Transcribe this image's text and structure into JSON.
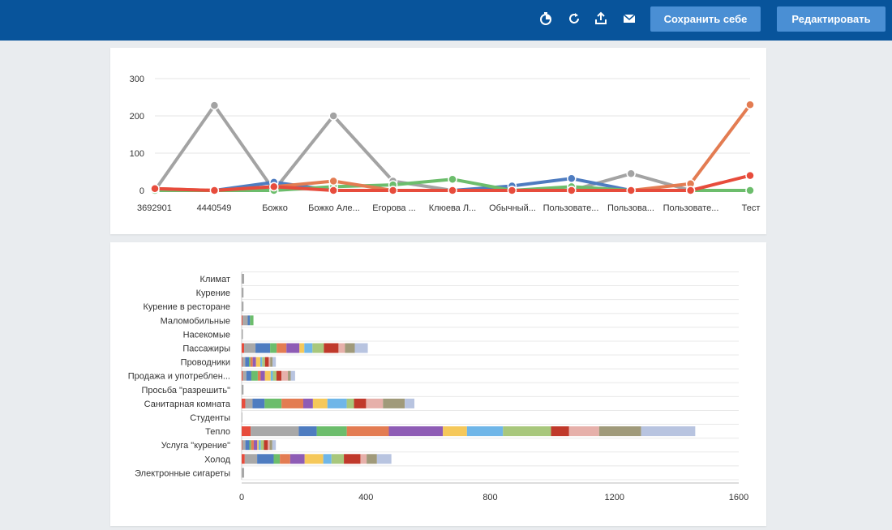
{
  "toolbar": {
    "icons": [
      "timer-icon",
      "refresh-icon",
      "export-icon",
      "mail-icon"
    ],
    "save_label": "Сохранить себе",
    "edit_label": "Редактировать"
  },
  "chart_data": [
    {
      "type": "line",
      "categories": [
        "3692901",
        "4440549",
        "Божко",
        "Божко Але...",
        "Егорова ...",
        "Клюева Л...",
        "Обычный...",
        "Пользовате...",
        "Пользова...",
        "Пользовате...",
        "Тест"
      ],
      "ylim": [
        0,
        300
      ],
      "yticks": [
        0,
        100,
        200,
        300
      ],
      "grid": true,
      "series": [
        {
          "color": "#a3a3a3",
          "values": [
            0,
            228,
            0,
            200,
            25,
            0,
            0,
            0,
            45,
            0,
            0
          ]
        },
        {
          "color": "#4e7cc0",
          "values": [
            0,
            0,
            22,
            0,
            0,
            0,
            12,
            32,
            0,
            0,
            0
          ]
        },
        {
          "color": "#6cbd6c",
          "values": [
            0,
            0,
            0,
            10,
            15,
            30,
            0,
            10,
            0,
            0,
            0
          ]
        },
        {
          "color": "#e37c52",
          "values": [
            5,
            0,
            10,
            25,
            0,
            0,
            0,
            0,
            0,
            18,
            230
          ]
        },
        {
          "color": "#e74c3c",
          "values": [
            5,
            0,
            10,
            0,
            0,
            0,
            0,
            0,
            0,
            0,
            40
          ]
        }
      ]
    },
    {
      "type": "bar",
      "orientation": "horizontal",
      "stacked": true,
      "categories": [
        "Климат",
        "Курение",
        "Курение в ресторане",
        "Маломобильные",
        "Насекомые",
        "Пассажиры",
        "Проводники",
        "Продажа и употреблен...",
        "Просьба \"разрешить\"",
        "Санитарная комната",
        "Студенты",
        "Тепло",
        "Услуга \"курение\"",
        "Холод",
        "Электронные сигареты"
      ],
      "xlim": [
        0,
        1600
      ],
      "xticks": [
        0,
        400,
        800,
        1200,
        1600
      ],
      "grid": true,
      "palette": [
        "#e74c3c",
        "#a8a8a8",
        "#4e7cc0",
        "#6cbd6c",
        "#e37c52",
        "#8e5cb5",
        "#f5c85a",
        "#6fb6e8",
        "#a8c77c",
        "#c0392b",
        "#e6b0aa",
        "#a09a7a",
        "#b8c4e0"
      ],
      "totals": [
        8,
        6,
        6,
        38,
        4,
        406,
        110,
        172,
        6,
        556,
        2,
        1460,
        110,
        482,
        8
      ]
    }
  ]
}
